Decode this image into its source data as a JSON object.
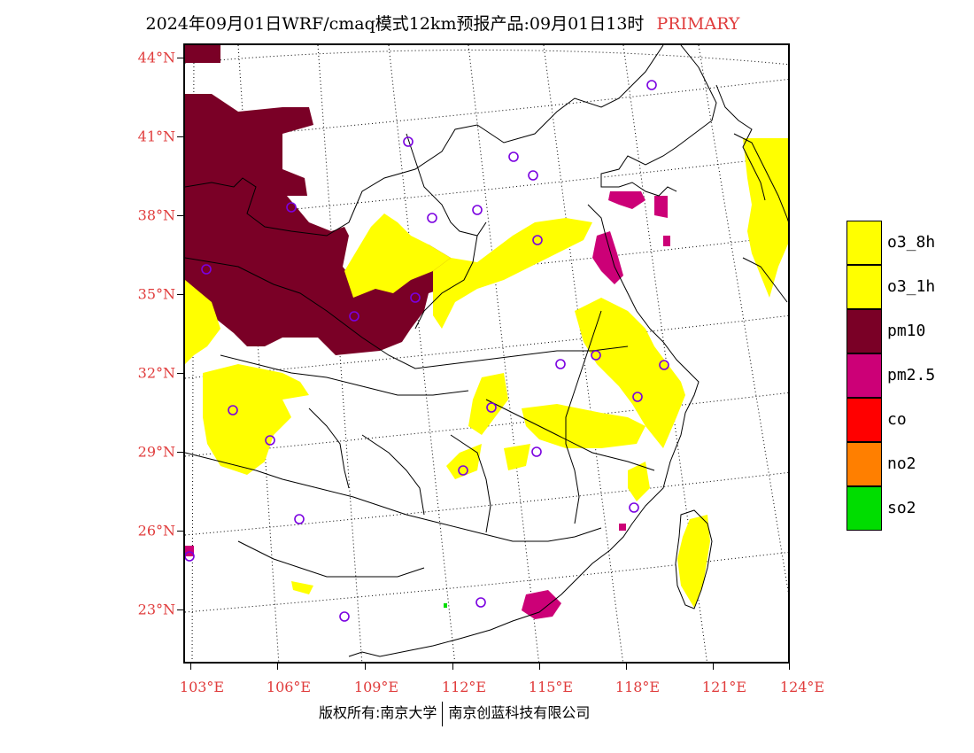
{
  "title": {
    "main": "2024年09月01日WRF/cmaq模式12km预报产品:09月01日13时",
    "tag": "PRIMARY"
  },
  "map": {
    "lat_labels": [
      "44°N",
      "41°N",
      "38°N",
      "35°N",
      "32°N",
      "29°N",
      "26°N",
      "23°N"
    ],
    "lon_labels": [
      "103°E",
      "106°E",
      "109°E",
      "112°E",
      "115°E",
      "118°E",
      "121°E",
      "124°E"
    ]
  },
  "legend": [
    {
      "label": "o3_8h",
      "color": "#ffff00"
    },
    {
      "label": "o3_1h",
      "color": "#ffff00"
    },
    {
      "label": "pm10",
      "color": "#7a0026"
    },
    {
      "label": "pm2.5",
      "color": "#cc0077"
    },
    {
      "label": "co",
      "color": "#ff0000"
    },
    {
      "label": "no2",
      "color": "#ff7f00"
    },
    {
      "label": "so2",
      "color": "#00dd00"
    }
  ],
  "footer": {
    "left": "版权所有:南京大学",
    "right": "南京创蓝科技有限公司"
  }
}
